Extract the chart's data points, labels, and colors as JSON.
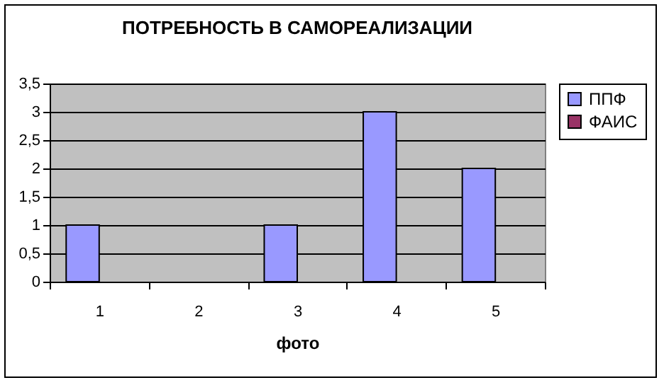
{
  "chart_data": {
    "type": "bar",
    "title": "ПОТРЕБНОСТЬ В САМОРЕАЛИЗАЦИИ",
    "xlabel": "фото",
    "categories": [
      "1",
      "2",
      "3",
      "4",
      "5"
    ],
    "series": [
      {
        "name": "ППФ",
        "color": "#9999ff",
        "values": [
          1,
          null,
          1,
          3,
          2
        ]
      },
      {
        "name": "ФАИС",
        "color": "#993366",
        "values": [
          null,
          null,
          null,
          null,
          null
        ]
      }
    ],
    "ylim": [
      0,
      3.5
    ],
    "yticks": [
      0,
      {
        "value": 0.5,
        "label": "0,5"
      },
      1,
      {
        "value": 1.5,
        "label": "1,5"
      },
      2,
      {
        "value": 2.5,
        "label": "2,5"
      },
      3,
      {
        "value": 3.5,
        "label": "3,5"
      }
    ],
    "grid": "y",
    "legend": "right"
  }
}
